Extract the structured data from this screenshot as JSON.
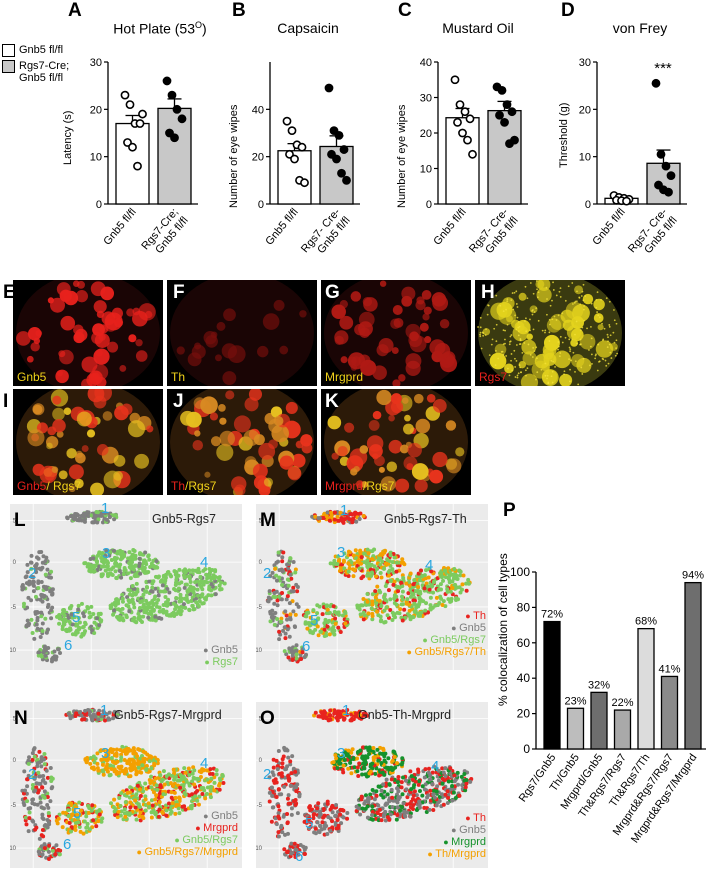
{
  "panels": {
    "A": {
      "letter": "A",
      "title_main": "Hot Plate (53",
      "title_sup": "O",
      "title_end": ")",
      "ylabel": "Latency (s)",
      "ticks": [
        "30",
        "20",
        "10",
        "0"
      ],
      "cats": [
        "Gnb5 fl/fl",
        "Rgs7-Cre;\nGnb5 fl/fl"
      ]
    },
    "B": {
      "letter": "B",
      "title": "Capsaicin",
      "ylabel": "Number of eye wipes",
      "ticks": [
        "40",
        "20",
        "0"
      ],
      "cats": [
        "Gnb5 fl/fl",
        "Rgs7- Cre-\nGnb5 fl/fl"
      ]
    },
    "C": {
      "letter": "C",
      "title": "Mustard Oil",
      "ylabel": "Number of eye wipes",
      "ticks": [
        "40",
        "30",
        "20",
        "10",
        "0"
      ],
      "cats": [
        "Gnb5 fl/fl",
        "Rgs7- Cre-\nGnb5 fl/fl"
      ]
    },
    "D": {
      "letter": "D",
      "title": "von Frey",
      "ylabel": "Threshold (g)",
      "ticks": [
        "30",
        "20",
        "10",
        "0"
      ],
      "cats": [
        "Gnb5 fl/fl",
        "Rgs7- Cre-\nGnb5 fl/fl"
      ],
      "sig": "***"
    }
  },
  "legend": {
    "item1": "Gnb5 fl/fl",
    "item2_line1": "Rgs7-Cre;",
    "item2_line2": "Gnb5 fl/fl",
    "colors": {
      "ctrl": "#ffffff",
      "cko": "#c8c8c8"
    }
  },
  "micrographs": {
    "E": {
      "letter": "E",
      "label": "Gnb5"
    },
    "F": {
      "letter": "F",
      "label": "Th"
    },
    "G": {
      "letter": "G",
      "label": "Mrgprd"
    },
    "H": {
      "letter": "H",
      "label": "Rgs7"
    },
    "I": {
      "letter": "I",
      "label_a": "Gnb5",
      "label_sep": "/ ",
      "label_b": "Rgs7"
    },
    "J": {
      "letter": "J",
      "label_a": "Th",
      "label_sep": "/",
      "label_b": "Rgs7"
    },
    "K": {
      "letter": "K",
      "label_a": "Mrgprd",
      "label_sep": "/",
      "label_b": "Rgs7"
    }
  },
  "umaps": {
    "L": {
      "letter": "L",
      "title": "Gnb5-Rgs7",
      "legend": [
        {
          "t": "Gnb5",
          "c": "#7f7f7f"
        },
        {
          "t": "Rgs7",
          "c": "#7ccb5f"
        }
      ]
    },
    "M": {
      "letter": "M",
      "title": "Gnb5-Rgs7-Th",
      "legend": [
        {
          "t": "Th",
          "c": "#e8231f"
        },
        {
          "t": "Gnb5",
          "c": "#7f7f7f"
        },
        {
          "t": "Gnb5/Rgs7",
          "c": "#7ccb5f"
        },
        {
          "t": "Gnb5/Rgs7/Th",
          "c": "#f4a000"
        }
      ]
    },
    "N": {
      "letter": "N",
      "title": "Gnb5-Rgs7-Mrgprd",
      "legend": [
        {
          "t": "Gnb5",
          "c": "#7f7f7f"
        },
        {
          "t": "Mrgprd",
          "c": "#e8231f"
        },
        {
          "t": "Gnb5/Rgs7",
          "c": "#7ccb5f"
        },
        {
          "t": "Gnb5/Rgs7/Mrgprd",
          "c": "#f4a000"
        }
      ]
    },
    "O": {
      "letter": "O",
      "title": "Gnb5-Th-Mrgprd",
      "legend": [
        {
          "t": "Th",
          "c": "#e8231f"
        },
        {
          "t": "Gnb5",
          "c": "#7f7f7f"
        },
        {
          "t": "Mrgprd",
          "c": "#15922c"
        },
        {
          "t": "Th/Mrgprd",
          "c": "#f4a000"
        }
      ]
    },
    "cluster_numbers": [
      "1",
      "2",
      "3",
      "4",
      "5",
      "6"
    ],
    "ticks_y": [
      "5",
      "0",
      "-5",
      "-10"
    ],
    "ticks_x": [
      "-6",
      "-3",
      "0",
      "3"
    ]
  },
  "panelP": {
    "letter": "P",
    "ylabel": "% colocalization of cell types",
    "ticks": [
      "100",
      "80",
      "60",
      "40",
      "20",
      "0"
    ]
  },
  "chart_data": [
    {
      "type": "bar",
      "title": "Hot Plate (53O)",
      "ylabel": "Latency (s)",
      "ylim": [
        0,
        30
      ],
      "categories": [
        "Gnb5 fl/fl",
        "Rgs7-Cre; Gnb5 fl/fl"
      ],
      "values": [
        17,
        20.2
      ],
      "errors": [
        1.7,
        2.0
      ],
      "points": [
        [
          23,
          21,
          17,
          17,
          13,
          12,
          8,
          19
        ],
        [
          26,
          23,
          20,
          18,
          15,
          14
        ]
      ]
    },
    {
      "type": "bar",
      "title": "Capsaicin",
      "ylabel": "Number of eye wipes",
      "ylim": [
        0,
        60
      ],
      "categories": [
        "Gnb5 fl/fl",
        "Rgs7- Cre- Gnb5 fl/fl"
      ],
      "values": [
        22.5,
        24.3
      ],
      "errors": [
        3,
        4.5
      ],
      "points": [
        [
          35,
          31,
          25,
          24,
          21,
          19,
          10,
          9
        ],
        [
          49,
          31,
          29,
          23,
          21,
          19,
          13,
          10
        ]
      ]
    },
    {
      "type": "bar",
      "title": "Mustard Oil",
      "ylabel": "Number of eye wipes",
      "ylim": [
        0,
        40
      ],
      "categories": [
        "Gnb5 fl/fl",
        "Rgs7- Cre- Gnb5 fl/fl"
      ],
      "values": [
        24.3,
        26.3
      ],
      "errors": [
        2.6,
        2.6
      ],
      "points": [
        [
          35,
          28,
          26,
          24,
          23,
          20,
          18,
          14
        ],
        [
          33,
          32,
          28,
          26,
          25,
          23,
          17,
          18
        ]
      ]
    },
    {
      "type": "bar",
      "title": "von Frey",
      "ylabel": "Threshold (g)",
      "ylim": [
        0,
        30
      ],
      "categories": [
        "Gnb5 fl/fl",
        "Rgs7- Cre- Gnb5 fl/fl"
      ],
      "values": [
        1.2,
        8.6
      ],
      "errors": [
        0.3,
        2.8
      ],
      "points": [
        [
          1.8,
          1.4,
          1.2,
          1.0,
          0.8,
          0.7,
          0.6
        ],
        [
          25.5,
          10.5,
          8,
          6,
          4,
          3,
          2.5
        ]
      ],
      "annotation": "***"
    },
    {
      "type": "bar",
      "title": "",
      "ylabel": "% colocalization of cell types",
      "ylim": [
        0,
        100
      ],
      "categories": [
        "Rgs7/Gnb5",
        "Th/Gnb5",
        "Mrgprd/Gnb5",
        "Th&Rgs7/Rgs7",
        "Th&Rgs7/Th",
        "Mrgprd&Rgs7/Rgs7",
        "Mrgprd&Rgs7/Mrgprd"
      ],
      "values": [
        72,
        23,
        32,
        22,
        68,
        41,
        94
      ],
      "data_labels": [
        "72%",
        "23%",
        "32%",
        "22%",
        "68%",
        "41%",
        "94%"
      ],
      "colors": [
        "#000000",
        "#bdbdbd",
        "#6e6e6e",
        "#a9a9a9",
        "#dcdcdc",
        "#8a8a8a",
        "#6e6e6e"
      ]
    }
  ]
}
